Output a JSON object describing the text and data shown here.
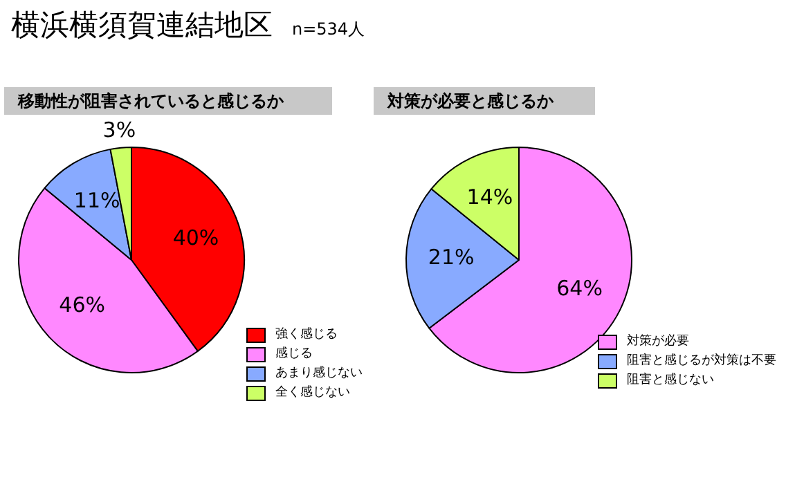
{
  "chart_data": [
    {
      "type": "other",
      "title": "横浜横須賀連結地区",
      "subtitle": "n=534人"
    },
    {
      "type": "pie",
      "title": "移動性が阻害されていると感じるか",
      "categories": [
        "強く感じる",
        "感じる",
        "あまり感じない",
        "全く感じない"
      ],
      "values": [
        40,
        46,
        11,
        3
      ],
      "colors": [
        "#ff0000",
        "#ff88ff",
        "#88aaff",
        "#ccff66"
      ],
      "value_labels": [
        "40%",
        "46%",
        "11%",
        "3%"
      ],
      "legend": "bottom right"
    },
    {
      "type": "pie",
      "title": "対策が必要と感じるか",
      "categories": [
        "対策が必要",
        "阻害と感じるが対策は不要",
        "阻害と感じない"
      ],
      "values": [
        64,
        21,
        14
      ],
      "colors": [
        "#ff88ff",
        "#88aaff",
        "#ccff66"
      ],
      "value_labels": [
        "64%",
        "21%",
        "14%"
      ],
      "legend": "bottom right"
    }
  ]
}
